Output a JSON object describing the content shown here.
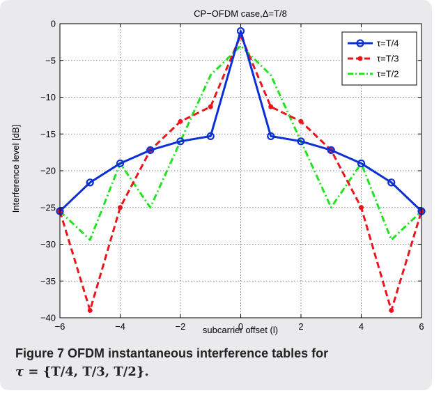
{
  "figure": {
    "label": "Figure 7",
    "caption_text": "OFDM instantaneous interference tables for",
    "caption_math_symbol": "τ",
    "caption_math_rest": " = {T/4, T/3, T/2}."
  },
  "colors": {
    "series1": "#0a2fd6",
    "series2": "#e8151b",
    "series3": "#1fe31f",
    "grid": "#666666",
    "axes": "#000000"
  },
  "chart_data": {
    "type": "line",
    "title": "CP−OFDM case,Δ=T/8",
    "xlabel": "subcarrier offset (l)",
    "ylabel": "Interference level [dB]",
    "xlim": [
      -6,
      6
    ],
    "ylim": [
      -40,
      0
    ],
    "xticks": [
      -6,
      -4,
      -2,
      0,
      2,
      4,
      6
    ],
    "yticks": [
      0,
      -5,
      -10,
      -15,
      -20,
      -25,
      -30,
      -35,
      -40
    ],
    "xtick_labels": [
      "−6",
      "−4",
      "−2",
      "0",
      "2",
      "4",
      "6"
    ],
    "ytick_labels": [
      "0",
      "−5",
      "−10",
      "−15",
      "−20",
      "−25",
      "−30",
      "−35",
      "−40"
    ],
    "grid": true,
    "legend_position": "top-right",
    "x": [
      -6,
      -5,
      -4,
      -3,
      -2,
      -1,
      0,
      1,
      2,
      3,
      4,
      5,
      6
    ],
    "series": [
      {
        "name": "τ=T/4",
        "style": "solid",
        "marker": "circle",
        "color": "#0a2fd6",
        "values": [
          -25.5,
          -21.6,
          -19.0,
          -17.2,
          -16.0,
          -15.3,
          -1.0,
          -15.3,
          -16.0,
          -17.2,
          -19.0,
          -21.6,
          -25.5
        ]
      },
      {
        "name": "τ=T/3",
        "style": "dashed",
        "marker": "dot",
        "color": "#e8151b",
        "values": [
          -25.5,
          -39.0,
          -25.0,
          -17.2,
          -13.3,
          -11.3,
          -1.6,
          -11.3,
          -13.3,
          -17.2,
          -25.0,
          -39.0,
          -25.5
        ]
      },
      {
        "name": "τ=T/2",
        "style": "dashdot",
        "marker": "none",
        "color": "#1fe31f",
        "values": [
          -25.5,
          -29.4,
          -19.0,
          -25.0,
          -16.0,
          -7.0,
          -3.0,
          -7.0,
          -16.0,
          -25.0,
          -19.0,
          -29.4,
          -25.5
        ]
      }
    ]
  }
}
